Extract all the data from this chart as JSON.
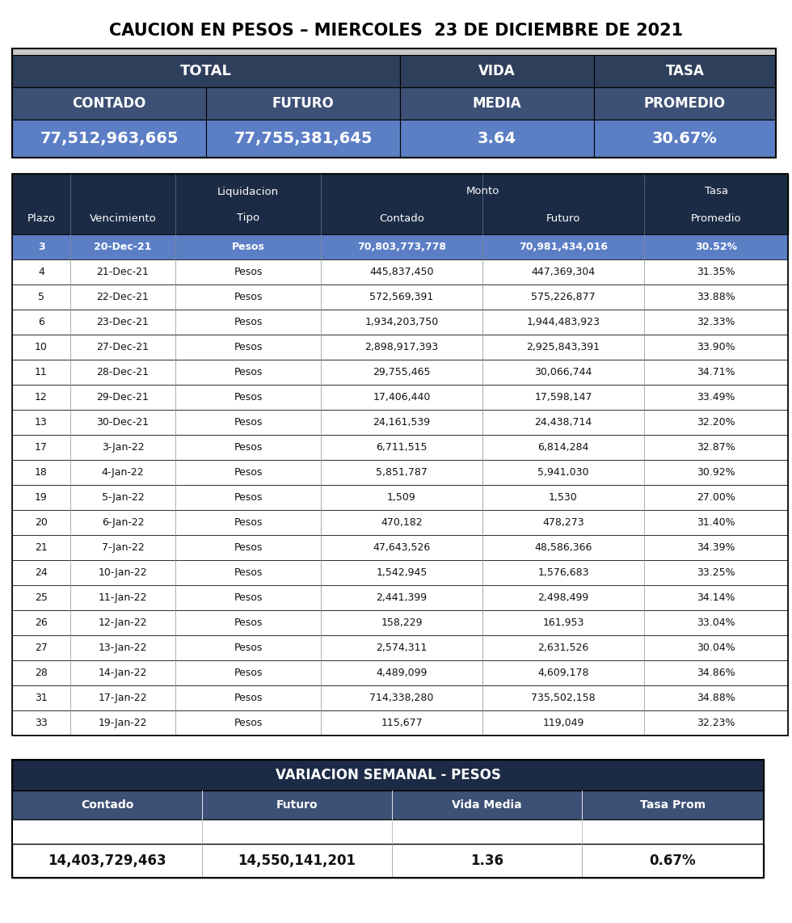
{
  "title": "CAUCION EN PESOS – MIERCOLES  23 DE DICIEMBRE DE 2021",
  "summary_values": [
    "77,512,963,665",
    "77,755,381,645",
    "3.64",
    "30.67%"
  ],
  "detail_rows": [
    [
      "3",
      "20-Dec-21",
      "Pesos",
      "70,803,773,778",
      "70,981,434,016",
      "30.52%"
    ],
    [
      "4",
      "21-Dec-21",
      "Pesos",
      "445,837,450",
      "447,369,304",
      "31.35%"
    ],
    [
      "5",
      "22-Dec-21",
      "Pesos",
      "572,569,391",
      "575,226,877",
      "33.88%"
    ],
    [
      "6",
      "23-Dec-21",
      "Pesos",
      "1,934,203,750",
      "1,944,483,923",
      "32.33%"
    ],
    [
      "10",
      "27-Dec-21",
      "Pesos",
      "2,898,917,393",
      "2,925,843,391",
      "33.90%"
    ],
    [
      "11",
      "28-Dec-21",
      "Pesos",
      "29,755,465",
      "30,066,744",
      "34.71%"
    ],
    [
      "12",
      "29-Dec-21",
      "Pesos",
      "17,406,440",
      "17,598,147",
      "33.49%"
    ],
    [
      "13",
      "30-Dec-21",
      "Pesos",
      "24,161,539",
      "24,438,714",
      "32.20%"
    ],
    [
      "17",
      "3-Jan-22",
      "Pesos",
      "6,711,515",
      "6,814,284",
      "32.87%"
    ],
    [
      "18",
      "4-Jan-22",
      "Pesos",
      "5,851,787",
      "5,941,030",
      "30.92%"
    ],
    [
      "19",
      "5-Jan-22",
      "Pesos",
      "1,509",
      "1,530",
      "27.00%"
    ],
    [
      "20",
      "6-Jan-22",
      "Pesos",
      "470,182",
      "478,273",
      "31.40%"
    ],
    [
      "21",
      "7-Jan-22",
      "Pesos",
      "47,643,526",
      "48,586,366",
      "34.39%"
    ],
    [
      "24",
      "10-Jan-22",
      "Pesos",
      "1,542,945",
      "1,576,683",
      "33.25%"
    ],
    [
      "25",
      "11-Jan-22",
      "Pesos",
      "2,441,399",
      "2,498,499",
      "34.14%"
    ],
    [
      "26",
      "12-Jan-22",
      "Pesos",
      "158,229",
      "161,953",
      "33.04%"
    ],
    [
      "27",
      "13-Jan-22",
      "Pesos",
      "2,574,311",
      "2,631,526",
      "30.04%"
    ],
    [
      "28",
      "14-Jan-22",
      "Pesos",
      "4,489,099",
      "4,609,178",
      "34.86%"
    ],
    [
      "31",
      "17-Jan-22",
      "Pesos",
      "714,338,280",
      "735,502,158",
      "34.88%"
    ],
    [
      "33",
      "19-Jan-22",
      "Pesos",
      "115,677",
      "119,049",
      "32.23%"
    ]
  ],
  "variacion_title": "VARIACION SEMANAL - PESOS",
  "variacion_headers": [
    "Contado",
    "Futuro",
    "Vida Media",
    "Tasa Prom"
  ],
  "variacion_values": [
    "14,403,729,463",
    "14,550,141,201",
    "1.36",
    "0.67%"
  ],
  "color_darkest": "#1C2B45",
  "color_dark": "#2E3F5C",
  "color_medium": "#3D5075",
  "color_blue_row": "#5B7EC5",
  "color_light_gray": "#E8E8E8",
  "color_white": "#FFFFFF",
  "color_black": "#000000",
  "color_dark_text": "#111111"
}
